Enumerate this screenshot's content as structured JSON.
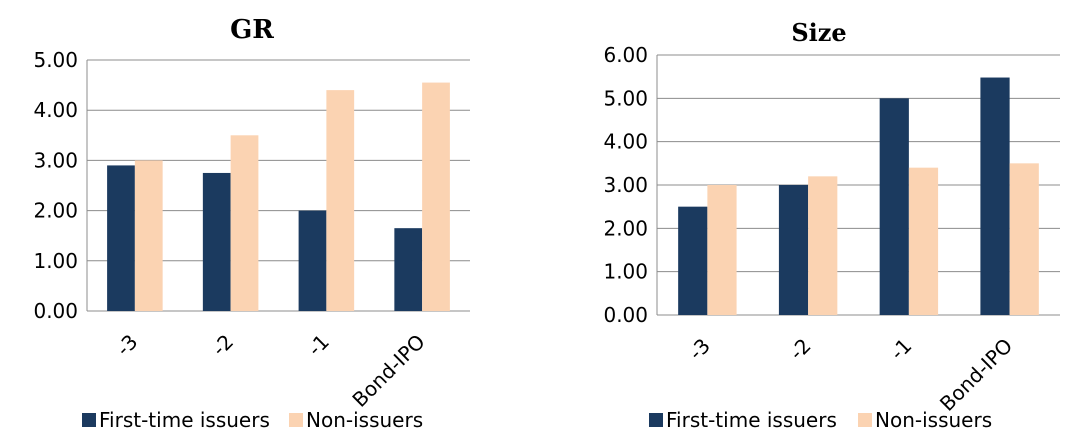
{
  "colors": {
    "first_time_issuers": "#1b3a5f",
    "non_issuers": "#fbd3b2",
    "grid": "#8c8c8c"
  },
  "chart_data": [
    {
      "type": "bar",
      "title": "GR",
      "categories": [
        "-3",
        "-2",
        "-1",
        "Bond-IPO"
      ],
      "series": [
        {
          "name": "First-time issuers",
          "values": [
            2.9,
            2.75,
            2.0,
            1.65
          ]
        },
        {
          "name": "Non-issuers",
          "values": [
            3.0,
            3.5,
            4.4,
            4.55
          ]
        }
      ],
      "xlabel": "",
      "ylabel": "",
      "ylim": [
        0,
        5
      ],
      "yticks": [
        "0.00",
        "1.00",
        "2.00",
        "3.00",
        "4.00",
        "5.00"
      ],
      "grid": true,
      "legend": "bottom"
    },
    {
      "type": "bar",
      "title": "Size",
      "categories": [
        "-3",
        "-2",
        "-1",
        "Bond-IPO"
      ],
      "series": [
        {
          "name": "First-time issuers",
          "values": [
            2.5,
            3.0,
            5.0,
            5.48
          ]
        },
        {
          "name": "Non-issuers",
          "values": [
            3.0,
            3.2,
            3.4,
            3.5
          ]
        }
      ],
      "xlabel": "",
      "ylabel": "",
      "ylim": [
        0,
        6
      ],
      "yticks": [
        "0.00",
        "1.00",
        "2.00",
        "3.00",
        "4.00",
        "5.00",
        "6.00"
      ],
      "grid": true,
      "legend": "bottom"
    }
  ]
}
